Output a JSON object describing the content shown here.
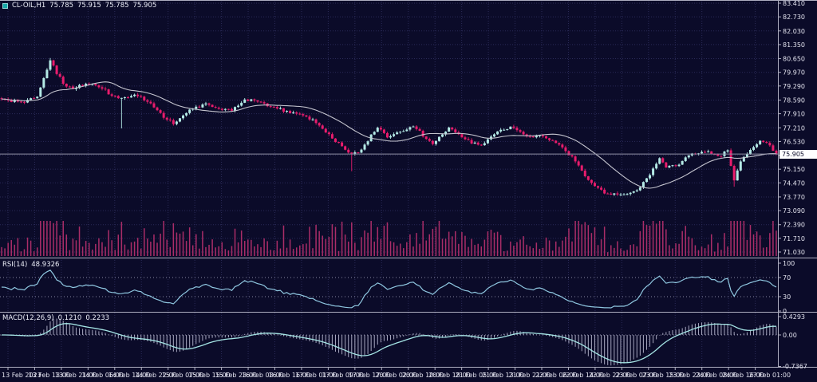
{
  "window": {
    "title": "CL-OIL,H1"
  },
  "header": {
    "symbol": "CL-OIL,H1",
    "open": "75.785",
    "high": "75.915",
    "low": "75.785",
    "close": "75.905"
  },
  "rsi_panel": {
    "label": "RSI(14)",
    "value": "48.9326",
    "axis_labels": [
      "100",
      "70",
      "30",
      "0"
    ],
    "axis_values": [
      100,
      70,
      30,
      0
    ],
    "levels": [
      70,
      30
    ]
  },
  "macd_panel": {
    "label": "MACD(12,26,9)",
    "value_main": "0.1210",
    "value_signal": "0.2233",
    "axis_labels": [
      "0.4293",
      "0.00",
      "-0.7367"
    ],
    "axis_values": [
      0.4293,
      0,
      -0.7367
    ],
    "range": [
      -0.7367,
      0.4293
    ]
  },
  "chart_data": {
    "type": "candlestick",
    "title": "CL-OIL,H1",
    "legend": [
      "candles",
      "moving-average",
      "volume",
      "RSI(14)",
      "MACD(12,26,9)"
    ],
    "price_axis": {
      "min": 71.03,
      "max": 83.41,
      "ticks": [
        [
          83.41,
          "83.410"
        ],
        [
          82.73,
          "82.730"
        ],
        [
          82.03,
          "82.030"
        ],
        [
          81.35,
          "81.350"
        ],
        [
          80.65,
          "80.650"
        ],
        [
          79.97,
          "79.970"
        ],
        [
          79.29,
          "79.290"
        ],
        [
          78.59,
          "78.590"
        ],
        [
          77.91,
          "77.910"
        ],
        [
          77.21,
          "77.210"
        ],
        [
          76.53,
          "76.530"
        ],
        [
          75.85,
          ""
        ],
        [
          75.15,
          "75.150"
        ],
        [
          74.47,
          "74.470"
        ],
        [
          73.77,
          "73.770"
        ],
        [
          73.09,
          "73.090"
        ],
        [
          72.39,
          "72.390"
        ],
        [
          71.71,
          "71.710"
        ],
        [
          71.03,
          "71.030"
        ]
      ],
      "current_price": 75.905,
      "current_price_label": "75.905"
    },
    "time_axis": {
      "labels": [
        "13 Feb 2023",
        "13 Feb 13:00",
        "13 Feb 21:00",
        "14 Feb 06:00",
        "14 Feb 14:00",
        "14 Feb 22:00",
        "15 Feb 07:00",
        "15 Feb 15:00",
        "15 Feb 23:00",
        "16 Feb 08:00",
        "16 Feb 16:00",
        "17 Feb 01:00",
        "17 Feb 09:00",
        "17 Feb 17:00",
        "20 Feb 02:00",
        "20 Feb 10:00",
        "20 Feb 18:00",
        "21 Feb 05:00",
        "21 Feb 13:00",
        "21 Feb 21:00",
        "22 Feb 06:00",
        "22 Feb 14:00",
        "22 Feb 22:00",
        "23 Feb 07:00",
        "23 Feb 15:00",
        "23 Feb 23:00",
        "24 Feb 08:00",
        "24 Feb 16:00",
        "27 Feb 01:00"
      ]
    },
    "series": {
      "candles": {
        "count": 240,
        "noise_amp": 0.085,
        "seed": 20230227,
        "anchors": [
          [
            0,
            78.62
          ],
          [
            7,
            78.48
          ],
          [
            11,
            78.78
          ],
          [
            15,
            80.55
          ],
          [
            17,
            79.9
          ],
          [
            19,
            79.42
          ],
          [
            22,
            79.12
          ],
          [
            26,
            79.42
          ],
          [
            30,
            79.25
          ],
          [
            34,
            78.82
          ],
          [
            37,
            78.72
          ],
          [
            41,
            78.88
          ],
          [
            46,
            78.42
          ],
          [
            50,
            77.72
          ],
          [
            53,
            77.42
          ],
          [
            58,
            78.12
          ],
          [
            63,
            78.42
          ],
          [
            67,
            78.18
          ],
          [
            71,
            78.08
          ],
          [
            75,
            78.62
          ],
          [
            79,
            78.52
          ],
          [
            84,
            78.22
          ],
          [
            89,
            77.95
          ],
          [
            93,
            77.85
          ],
          [
            98,
            77.35
          ],
          [
            101,
            76.88
          ],
          [
            105,
            76.28
          ],
          [
            108,
            75.92
          ],
          [
            110,
            75.98
          ],
          [
            112,
            76.38
          ],
          [
            116,
            77.22
          ],
          [
            119,
            76.72
          ],
          [
            123,
            77.02
          ],
          [
            127,
            77.28
          ],
          [
            133,
            76.42
          ],
          [
            138,
            77.22
          ],
          [
            143,
            76.62
          ],
          [
            148,
            76.32
          ],
          [
            153,
            77.05
          ],
          [
            157,
            77.25
          ],
          [
            162,
            76.82
          ],
          [
            167,
            76.78
          ],
          [
            170,
            76.58
          ],
          [
            174,
            76.05
          ],
          [
            178,
            75.35
          ],
          [
            181,
            74.62
          ],
          [
            186,
            73.95
          ],
          [
            191,
            73.88
          ],
          [
            196,
            74.12
          ],
          [
            200,
            74.85
          ],
          [
            203,
            75.72
          ],
          [
            205,
            75.22
          ],
          [
            209,
            75.38
          ],
          [
            213,
            75.92
          ],
          [
            218,
            76.02
          ],
          [
            222,
            75.82
          ],
          [
            224,
            76.08
          ],
          [
            226,
            74.6
          ],
          [
            228,
            75.55
          ],
          [
            231,
            76.12
          ],
          [
            234,
            76.55
          ],
          [
            237,
            76.32
          ],
          [
            239,
            75.905
          ]
        ],
        "wick_overrides": [
          {
            "i": 15,
            "high": 80.68
          },
          {
            "i": 37,
            "low": 77.18
          },
          {
            "i": 108,
            "low": 75.05
          },
          {
            "i": 226,
            "low": 74.28
          }
        ]
      },
      "ma_period": 21,
      "rsi_period": 14,
      "macd": {
        "fast": 12,
        "slow": 26,
        "signal": 9
      }
    },
    "colors": {
      "bg": "#0b0b29",
      "grid": "#2b2b58",
      "bull": "#b4eae6",
      "bear": "#e81c6c",
      "ma": "#c4c4ce",
      "rsi": "#8fc7e0",
      "macd_signal": "#a5e5e5",
      "macd_hist": "#c2c2d8",
      "volume": "#aa2d68",
      "axis_text": "#e2e2ee",
      "separator": "#aeaec0",
      "level_line": "#8888a2",
      "price_line": "#8f8fa5",
      "price_box_bg": "#ffffff",
      "price_box_text": "#0b0b29"
    }
  }
}
